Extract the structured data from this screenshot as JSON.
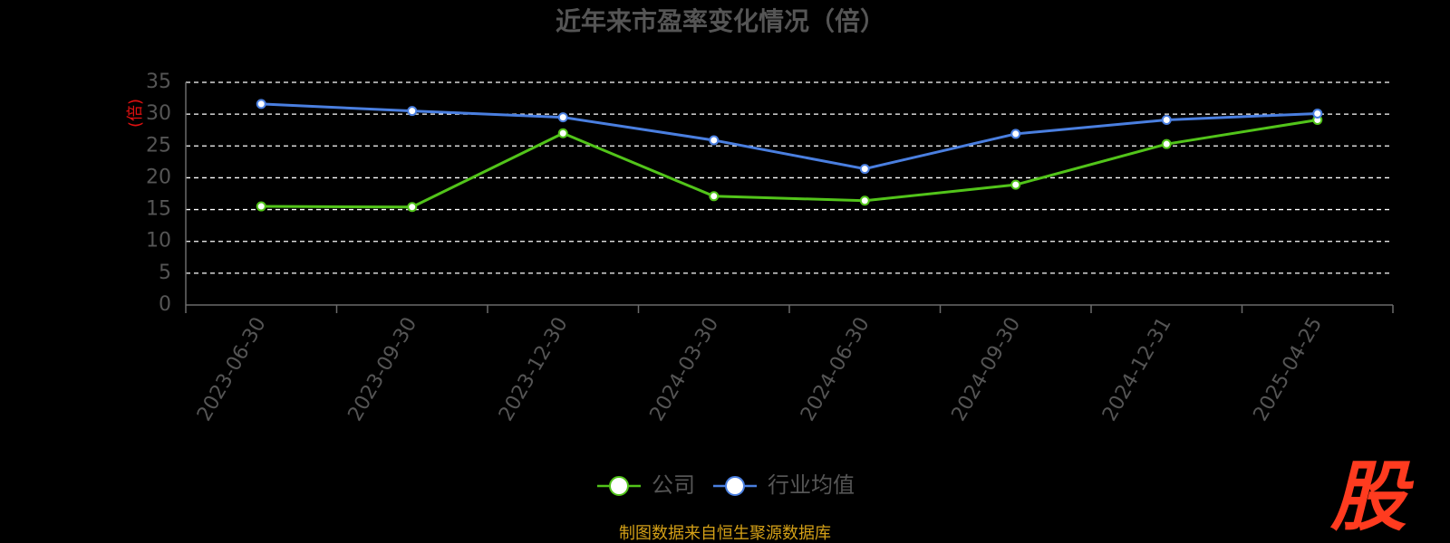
{
  "chart_data": {
    "type": "line",
    "title": "近年来市盈率变化情况（倍）",
    "ylabel": "(倍)",
    "xlabel": "",
    "categories": [
      "2023-06-30",
      "2023-09-30",
      "2023-12-30",
      "2024-03-30",
      "2024-06-30",
      "2024-09-30",
      "2024-12-31",
      "2025-04-25"
    ],
    "series": [
      {
        "name": "公司",
        "color": "#52c41a",
        "values": [
          15.5,
          15.4,
          27.0,
          17.1,
          16.4,
          18.9,
          25.3,
          29.1
        ]
      },
      {
        "name": "行业均值",
        "color": "#4a7fe0",
        "values": [
          31.6,
          30.5,
          29.5,
          25.9,
          21.4,
          26.9,
          29.1,
          30.1
        ]
      }
    ],
    "ylim": [
      0,
      35
    ],
    "yticks": [
      0,
      5,
      10,
      15,
      20,
      25,
      30,
      35
    ],
    "grid": true,
    "legend_position": "bottom-center"
  },
  "footer": {
    "source": "制图数据来自恒生聚源数据库"
  },
  "watermark": {
    "text": "股"
  },
  "colors": {
    "background": "#000000",
    "grid": "#ffffff",
    "axis": "#6b6b6b",
    "ylabel": "#e01010",
    "footer": "#d4a017",
    "watermark": "#ff3b1f"
  }
}
